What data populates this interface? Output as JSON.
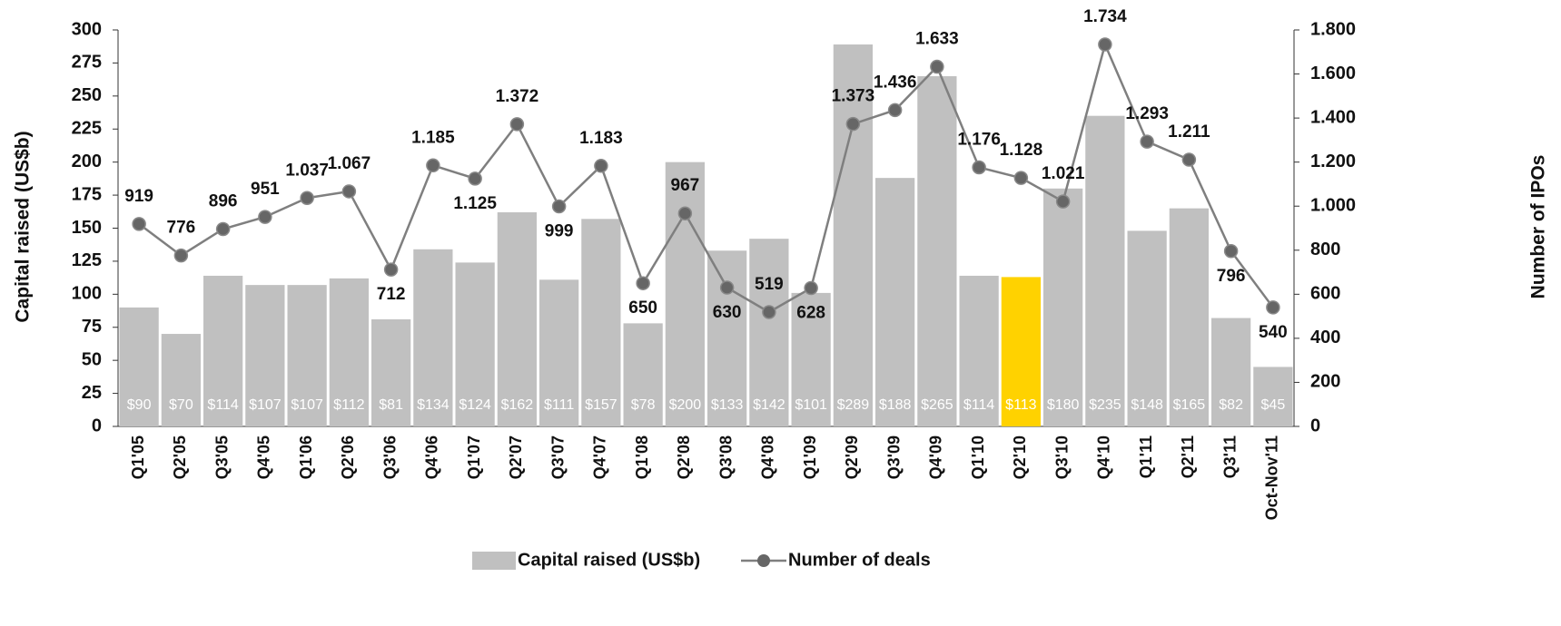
{
  "chart_data": {
    "type": "bar_line",
    "categories": [
      "Q1'05",
      "Q2'05",
      "Q3'05",
      "Q4'05",
      "Q1'06",
      "Q2'06",
      "Q3'06",
      "Q4'06",
      "Q1'07",
      "Q2'07",
      "Q3'07",
      "Q4'07",
      "Q1'08",
      "Q2'08",
      "Q3'08",
      "Q4'08",
      "Q1'09",
      "Q2'09",
      "Q3'09",
      "Q4'09",
      "Q1'10",
      "Q2'10",
      "Q3'10",
      "Q4'10",
      "Q1'11",
      "Q2'11",
      "Q3'11",
      "Oct-Nov'11"
    ],
    "y_label": "Capital raised (US$b)",
    "y2_label": "Number of IPOs",
    "ylim": [
      0,
      300
    ],
    "yticks": [
      0,
      25,
      50,
      75,
      100,
      125,
      150,
      175,
      200,
      225,
      250,
      275,
      300
    ],
    "y2lim": [
      0,
      1800
    ],
    "y2ticks": [
      0,
      200,
      400,
      600,
      800,
      {
        "value": 1000,
        "label": "1.000"
      },
      {
        "value": 1200,
        "label": "1.200"
      },
      {
        "value": 1400,
        "label": "1.400"
      },
      {
        "value": 1600,
        "label": "1.600"
      },
      {
        "value": 1800,
        "label": "1.800"
      }
    ],
    "series": [
      {
        "name": "Capital raised (US$b)",
        "kind": "bar",
        "color": "#c0c0c0",
        "colors": [
          "#c0c0c0",
          "#c0c0c0",
          "#c0c0c0",
          "#c0c0c0",
          "#c0c0c0",
          "#c0c0c0",
          "#c0c0c0",
          "#c0c0c0",
          "#c0c0c0",
          "#c0c0c0",
          "#c0c0c0",
          "#c0c0c0",
          "#c0c0c0",
          "#c0c0c0",
          "#c0c0c0",
          "#c0c0c0",
          "#c0c0c0",
          "#c0c0c0",
          "#c0c0c0",
          "#c0c0c0",
          "#c0c0c0",
          "#ffd200",
          "#c0c0c0",
          "#c0c0c0",
          "#c0c0c0",
          "#c0c0c0",
          "#c0c0c0",
          "#c0c0c0"
        ],
        "values": [
          90,
          70,
          114,
          107,
          107,
          112,
          81,
          134,
          124,
          162,
          111,
          157,
          78,
          200,
          133,
          142,
          101,
          289,
          188,
          265,
          114,
          113,
          180,
          235,
          148,
          165,
          82,
          45
        ],
        "value_labels": [
          "$90",
          "$70",
          "$114",
          "$107",
          "$107",
          "$112",
          "$81",
          "$134",
          "$124",
          "$162",
          "$111",
          "$157",
          "$78",
          "$200",
          "$133",
          "$142",
          "$101",
          "$289",
          "$188",
          "$265",
          "$114",
          "$113",
          "$180",
          "$235",
          "$148",
          "$165",
          "$82",
          "$45"
        ]
      },
      {
        "name": "Number of deals",
        "kind": "line",
        "axis": "y2",
        "color": "#7f7f7f",
        "values": [
          919,
          776,
          896,
          951,
          1037,
          1067,
          712,
          1185,
          1125,
          1372,
          999,
          1183,
          650,
          967,
          630,
          519,
          628,
          1373,
          1436,
          1633,
          1176,
          1128,
          1021,
          1734,
          1293,
          1211,
          796,
          540
        ],
        "value_labels": [
          "919",
          "776",
          "896",
          "951",
          "1.037",
          "1.067",
          "712",
          "1.185",
          "1.125",
          "1.372",
          "999",
          "1.183",
          "650",
          "967",
          "630",
          "519",
          "628",
          "1.373",
          "1.436",
          "1.633",
          "1.176",
          "1.128",
          "1.021",
          "1.734",
          "1.293",
          "1.211",
          "796",
          "540"
        ]
      }
    ]
  }
}
